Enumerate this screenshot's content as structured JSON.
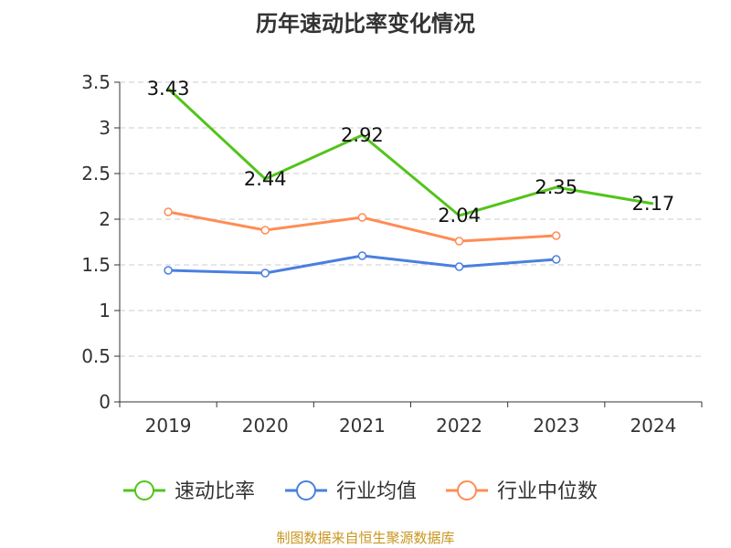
{
  "chart_data": {
    "type": "line",
    "title": "历年速动比率变化情况",
    "categories": [
      "2019",
      "2020",
      "2021",
      "2022",
      "2023",
      "2024"
    ],
    "ylim": [
      0,
      3.5
    ],
    "yticks": [
      "0",
      "0.5",
      "1",
      "1.5",
      "2",
      "2.5",
      "3",
      "3.5"
    ],
    "grid": true,
    "legend_position": "bottom",
    "series": [
      {
        "name": "速动比率",
        "color": "#52c41a",
        "values": [
          3.43,
          2.44,
          2.92,
          2.04,
          2.35,
          2.17
        ],
        "labels": [
          "3.43",
          "2.44",
          "2.92",
          "2.04",
          "2.35",
          "2.17"
        ]
      },
      {
        "name": "行业均值",
        "color": "#4a7fe0",
        "values": [
          1.44,
          1.41,
          1.6,
          1.48,
          1.56,
          null
        ]
      },
      {
        "name": "行业中位数",
        "color": "#ff8c55",
        "values": [
          2.08,
          1.88,
          2.02,
          1.76,
          1.82,
          null
        ]
      }
    ]
  },
  "source": "制图数据来自恒生聚源数据库"
}
